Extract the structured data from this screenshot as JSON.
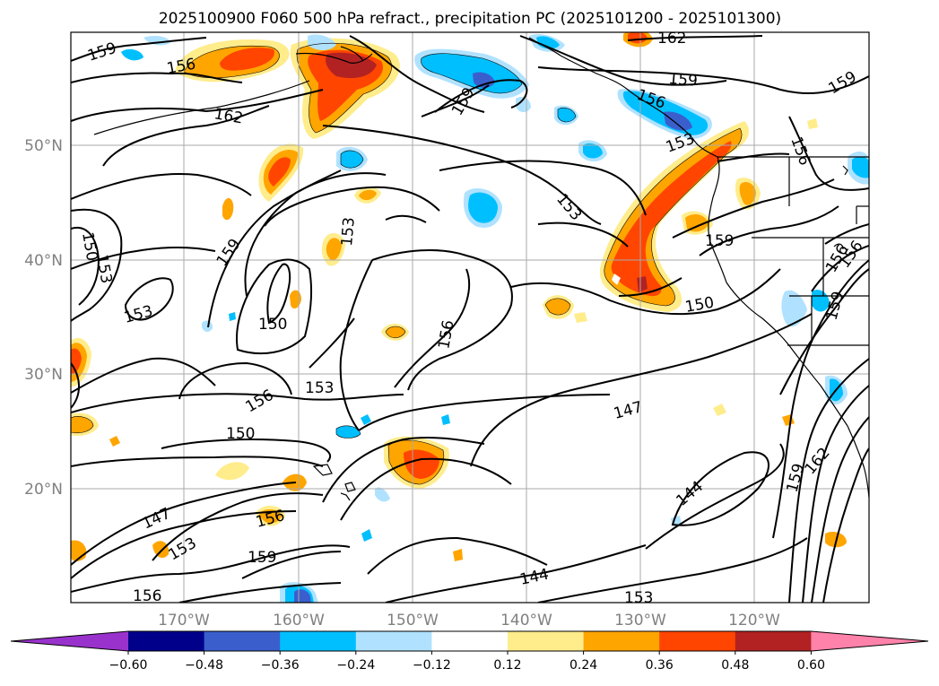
{
  "title": "2025100900 F060 500 hPa refract., precipitation PC (2025101200 - 2025101300)",
  "lat_labels": [
    "50°N",
    "40°N",
    "30°N",
    "20°N"
  ],
  "lon_labels": [
    "170°W",
    "160°W",
    "150°W",
    "140°W",
    "130°W",
    "120°W"
  ],
  "colorbar": {
    "ticks": [
      "−0.60",
      "−0.48",
      "−0.36",
      "−0.24",
      "−0.12",
      "0.12",
      "0.24",
      "0.36",
      "0.48",
      "0.60"
    ],
    "colors": [
      "#9932cc",
      "#00008b",
      "#3a5fcd",
      "#00bfff",
      "#b0e2ff",
      "#ffffff",
      "#ffec8b",
      "#ffa500",
      "#ff4500",
      "#b22222",
      "#ff82ab"
    ]
  },
  "contour_labels": [
    {
      "text": "159"
    },
    {
      "text": "156"
    },
    {
      "text": "162"
    },
    {
      "text": "159"
    },
    {
      "text": "162"
    },
    {
      "text": "159"
    },
    {
      "text": "156"
    },
    {
      "text": "159"
    },
    {
      "text": "156"
    },
    {
      "text": "153"
    },
    {
      "text": "153"
    },
    {
      "text": "153"
    },
    {
      "text": "159"
    },
    {
      "text": "159"
    },
    {
      "text": "150"
    },
    {
      "text": "153"
    },
    {
      "text": "153"
    },
    {
      "text": "150"
    },
    {
      "text": "156"
    },
    {
      "text": "150"
    },
    {
      "text": "156"
    },
    {
      "text": "159"
    },
    {
      "text": "156"
    },
    {
      "text": "153"
    },
    {
      "text": "147"
    },
    {
      "text": "150"
    },
    {
      "text": "144"
    },
    {
      "text": "159"
    },
    {
      "text": "162"
    },
    {
      "text": "147"
    },
    {
      "text": "156"
    },
    {
      "text": "153"
    },
    {
      "text": "159"
    },
    {
      "text": "156"
    },
    {
      "text": "144"
    },
    {
      "text": "153"
    },
    {
      "text": "156"
    }
  ]
}
